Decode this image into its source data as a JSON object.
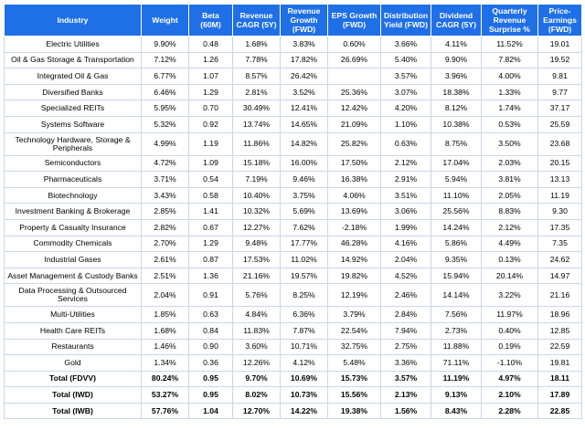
{
  "headers": [
    "Industry",
    "Weight",
    "Beta (60M)",
    "Revenue CAGR (5Y)",
    "Revenue Growth (FWD)",
    "EPS Growth (FWD)",
    "Distribution Yield (FWD)",
    "Dividend CAGR (5Y)",
    "Quarterly Revenue Surprise %",
    "Price-Earnings (FWD)"
  ],
  "rows": [
    [
      "Electric Utilities",
      "9.90%",
      "0.48",
      "1.68%",
      "3.83%",
      "0.60%",
      "3.66%",
      "4.11%",
      "11.52%",
      "19.01"
    ],
    [
      "Oil & Gas Storage & Transportation",
      "7.12%",
      "1.26",
      "7.78%",
      "17.82%",
      "26.69%",
      "5.40%",
      "9.90%",
      "7.82%",
      "19.52"
    ],
    [
      "Integrated Oil & Gas",
      "6.77%",
      "1.07",
      "8.57%",
      "26.42%",
      "",
      "3.57%",
      "3.96%",
      "4.00%",
      "9.81"
    ],
    [
      "Diversified Banks",
      "6.46%",
      "1.29",
      "2.81%",
      "3.52%",
      "25.36%",
      "3.07%",
      "18.38%",
      "1.33%",
      "9.77"
    ],
    [
      "Specialized REITs",
      "5.95%",
      "0.70",
      "30.49%",
      "12.41%",
      "12.42%",
      "4.20%",
      "8.12%",
      "1.74%",
      "37.17"
    ],
    [
      "Systems Software",
      "5.32%",
      "0.92",
      "13.74%",
      "14.65%",
      "21.09%",
      "1.10%",
      "10.38%",
      "0.53%",
      "25.59"
    ],
    [
      "Technology Hardware, Storage & Peripherals",
      "4.99%",
      "1.19",
      "11.86%",
      "14.82%",
      "25.82%",
      "0.63%",
      "8.75%",
      "3.50%",
      "23.68"
    ],
    [
      "Semiconductors",
      "4.72%",
      "1.09",
      "15.18%",
      "16.00%",
      "17.50%",
      "2.12%",
      "17.04%",
      "2.03%",
      "20.15"
    ],
    [
      "Pharmaceuticals",
      "3.71%",
      "0.54",
      "7.19%",
      "9.46%",
      "16.38%",
      "2.91%",
      "5.94%",
      "3.81%",
      "13.13"
    ],
    [
      "Biotechnology",
      "3.43%",
      "0.58",
      "10.40%",
      "3.75%",
      "4.06%",
      "3.51%",
      "11.10%",
      "2.05%",
      "11.19"
    ],
    [
      "Investment Banking & Brokerage",
      "2.85%",
      "1.41",
      "10.32%",
      "5.69%",
      "13.69%",
      "3.06%",
      "25.56%",
      "8.83%",
      "9.30"
    ],
    [
      "Property & Casualty Insurance",
      "2.82%",
      "0.67",
      "12.27%",
      "7.62%",
      "-2.18%",
      "1.99%",
      "14.24%",
      "2.12%",
      "17.35"
    ],
    [
      "Commodity Chemicals",
      "2.70%",
      "1.29",
      "9.48%",
      "17.77%",
      "46.28%",
      "4.16%",
      "5.86%",
      "4.49%",
      "7.35"
    ],
    [
      "Industrial Gases",
      "2.61%",
      "0.87",
      "17.53%",
      "11.02%",
      "14.92%",
      "2.04%",
      "9.35%",
      "0.13%",
      "24.62"
    ],
    [
      "Asset Management & Custody Banks",
      "2.51%",
      "1.36",
      "21.16%",
      "19.57%",
      "19.82%",
      "4.52%",
      "15.94%",
      "20.14%",
      "14.97"
    ],
    [
      "Data Processing & Outsourced Services",
      "2.04%",
      "0.91",
      "5.76%",
      "8.25%",
      "12.19%",
      "2.46%",
      "14.14%",
      "3.22%",
      "21.16"
    ],
    [
      "Multi-Utilities",
      "1.85%",
      "0.63",
      "4.84%",
      "6.36%",
      "3.79%",
      "2.84%",
      "7.56%",
      "11.97%",
      "18.96"
    ],
    [
      "Health Care REITs",
      "1.68%",
      "0.84",
      "11.83%",
      "7.87%",
      "22.54%",
      "7.94%",
      "2.73%",
      "0.40%",
      "12.85"
    ],
    [
      "Restaurants",
      "1.46%",
      "0.90",
      "3.60%",
      "10.71%",
      "32.75%",
      "2.75%",
      "11.88%",
      "0.19%",
      "22.59"
    ],
    [
      "Gold",
      "1.34%",
      "0.36",
      "12.26%",
      "4.12%",
      "5.48%",
      "3.36%",
      "71.11%",
      "-1.10%",
      "19.81"
    ]
  ],
  "totals": [
    [
      "Total (FDVV)",
      "80.24%",
      "0.95",
      "9.70%",
      "10.69%",
      "15.73%",
      "3.57%",
      "11.19%",
      "4.97%",
      "18.11"
    ],
    [
      "Total (IWD)",
      "53.27%",
      "0.95",
      "8.02%",
      "10.73%",
      "15.56%",
      "2.13%",
      "9.13%",
      "2.10%",
      "17.89"
    ],
    [
      "Total (IWB)",
      "57.76%",
      "1.04",
      "12.70%",
      "14.22%",
      "19.38%",
      "1.56%",
      "8.43%",
      "2.28%",
      "22.85"
    ]
  ],
  "colors": {
    "header_bg": "#1f6fe6",
    "header_text": "#ffffff",
    "grid": "#c9d6ec"
  }
}
